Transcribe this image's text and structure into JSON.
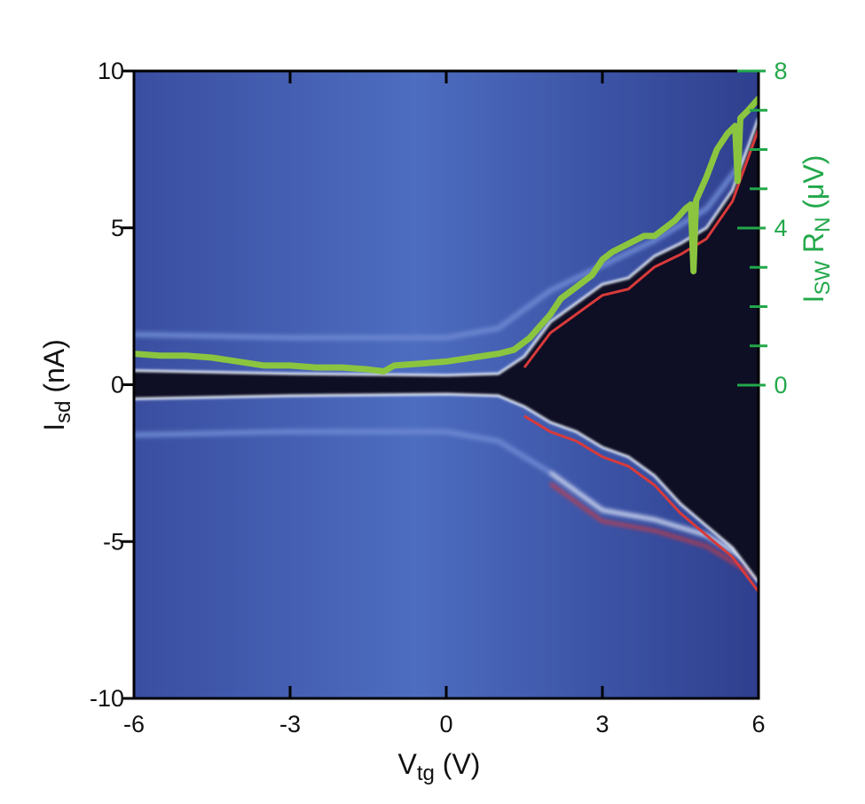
{
  "chart_data": {
    "type": "heatmap",
    "title": "",
    "colors": {
      "background_blue": "#3d54a6",
      "dark_band": "#0e0e24",
      "white_band": "#dfe6f4",
      "red_band": "#d93a3a",
      "overlay_line": "#8bc53f",
      "right_axis": "#22a84a"
    },
    "x_axis": {
      "label_main": "V",
      "label_sub": "tg",
      "label_unit": " (V)",
      "range": [
        -6,
        6
      ],
      "ticks": [
        {
          "value": -6,
          "label": "-6"
        },
        {
          "value": -3,
          "label": "-3"
        },
        {
          "value": 0,
          "label": "0"
        },
        {
          "value": 3,
          "label": "3"
        },
        {
          "value": 6,
          "label": "6"
        }
      ]
    },
    "y_axis": {
      "label_main": "I",
      "label_sub": "sd",
      "label_unit": " (nA)",
      "range": [
        -10,
        10
      ],
      "ticks": [
        {
          "value": 10,
          "label": "10"
        },
        {
          "value": 5,
          "label": "5"
        },
        {
          "value": 0,
          "label": "0"
        },
        {
          "value": -5,
          "label": "-5"
        },
        {
          "value": -10,
          "label": "-10"
        }
      ]
    },
    "y2_axis": {
      "label_main": "I",
      "label_sub1": "SW",
      "label_mid": " R",
      "label_sub2": "N",
      "label_unit": " (μV)",
      "range": [
        0,
        8
      ],
      "ticks": [
        {
          "value": 0,
          "label": "0"
        },
        {
          "value": 4,
          "label": "4"
        },
        {
          "value": 8,
          "label": "8"
        }
      ],
      "minor_ticks": [
        1,
        2,
        3,
        5,
        6,
        7
      ]
    },
    "switching_current_boundary": {
      "x": [
        -6,
        -3,
        0,
        1,
        1.5,
        2,
        2.5,
        3,
        3.5,
        4,
        4.5,
        5,
        5.5,
        6
      ],
      "upper_nA": [
        0.45,
        0.35,
        0.3,
        0.35,
        0.9,
        2.0,
        2.6,
        3.2,
        3.4,
        4.1,
        4.5,
        5.0,
        6.2,
        8.5
      ],
      "lower_nA": [
        -0.45,
        -0.35,
        -0.3,
        -0.35,
        -0.7,
        -1.2,
        -1.5,
        -2.0,
        -2.3,
        -2.9,
        -3.8,
        -4.5,
        -5.2,
        -6.3
      ]
    },
    "side_band": {
      "x": [
        -6,
        -3,
        0,
        1,
        2,
        3,
        4,
        5,
        6
      ],
      "upper_nA": [
        1.6,
        1.5,
        1.5,
        1.8,
        3.0,
        3.8,
        4.6,
        5.6,
        7.8
      ],
      "lower_nA": [
        -1.6,
        -1.5,
        -1.5,
        -1.8,
        -2.8,
        -4.0,
        -4.3,
        -4.8,
        -5.8
      ]
    },
    "series": [
      {
        "name": "",
        "axis": "y2",
        "x": [
          -6.0,
          -5.5,
          -5.0,
          -4.5,
          -4.0,
          -3.5,
          -3.0,
          -2.5,
          -2.0,
          -1.5,
          -1.2,
          -1.0,
          -0.5,
          0.0,
          0.5,
          1.0,
          1.3,
          1.6,
          1.8,
          2.0,
          2.2,
          2.5,
          2.8,
          3.0,
          3.2,
          3.5,
          3.8,
          4.0,
          4.2,
          4.4,
          4.6,
          4.7,
          4.75,
          4.8,
          5.0,
          5.2,
          5.4,
          5.55,
          5.6,
          5.65,
          5.8,
          6.0
        ],
        "y": [
          0.8,
          0.75,
          0.75,
          0.7,
          0.6,
          0.5,
          0.5,
          0.45,
          0.45,
          0.4,
          0.35,
          0.5,
          0.55,
          0.6,
          0.7,
          0.8,
          0.9,
          1.2,
          1.5,
          1.8,
          2.2,
          2.5,
          2.8,
          3.2,
          3.4,
          3.6,
          3.8,
          3.8,
          4.0,
          4.2,
          4.5,
          4.6,
          2.9,
          4.7,
          5.3,
          6.0,
          6.4,
          6.6,
          5.2,
          6.8,
          7.0,
          7.3
        ]
      }
    ],
    "grid": false,
    "legend": "none"
  }
}
